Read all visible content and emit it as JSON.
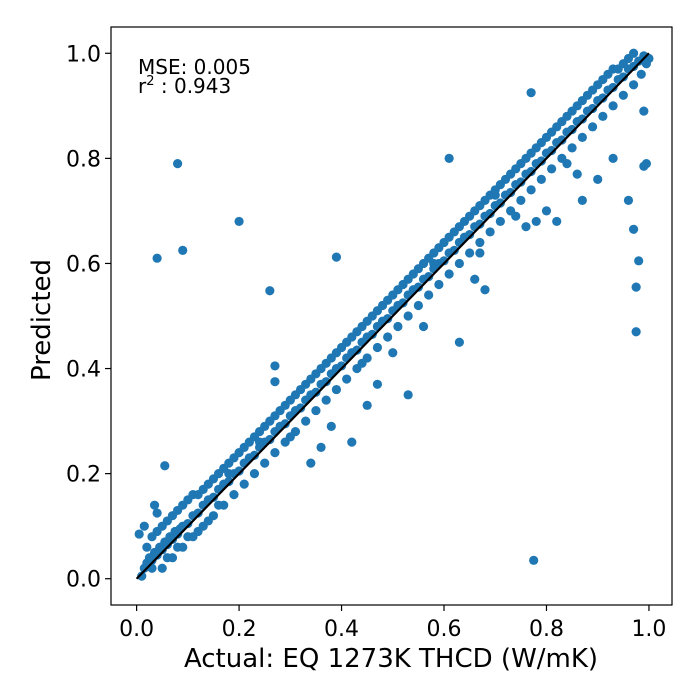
{
  "chart_data": {
    "type": "scatter",
    "xlabel": "Actual: EQ 1273K THCD (W/mK)",
    "ylabel": "Predicted",
    "xlim": [
      -0.05,
      1.045
    ],
    "ylim": [
      -0.05,
      1.05
    ],
    "xticks": [
      "0.0",
      "0.2",
      "0.4",
      "0.6",
      "0.8",
      "1.0"
    ],
    "yticks": [
      "0.0",
      "0.2",
      "0.4",
      "0.6",
      "0.8",
      "1.0"
    ],
    "grid": false,
    "annotations": {
      "mse": "MSE: 0.005",
      "r2_symbol": "r",
      "r2_exponent": "2",
      "r2_value": " : 0.943"
    },
    "point_color": "#1f77b4",
    "line_color": "#000000",
    "reference_line": {
      "x": [
        0.0,
        1.0
      ],
      "y": [
        0.0,
        1.0
      ]
    },
    "series": [
      {
        "points": [
          [
            0.01,
            0.005
          ],
          [
            0.015,
            0.02
          ],
          [
            0.02,
            0.03
          ],
          [
            0.025,
            0.04
          ],
          [
            0.03,
            0.035
          ],
          [
            0.035,
            0.05
          ],
          [
            0.04,
            0.045
          ],
          [
            0.045,
            0.06
          ],
          [
            0.05,
            0.055
          ],
          [
            0.055,
            0.07
          ],
          [
            0.06,
            0.065
          ],
          [
            0.065,
            0.08
          ],
          [
            0.07,
            0.075
          ],
          [
            0.075,
            0.09
          ],
          [
            0.08,
            0.085
          ],
          [
            0.085,
            0.095
          ],
          [
            0.09,
            0.1
          ],
          [
            0.1,
            0.105
          ],
          [
            0.11,
            0.12
          ],
          [
            0.12,
            0.125
          ],
          [
            0.13,
            0.14
          ],
          [
            0.14,
            0.15
          ],
          [
            0.15,
            0.155
          ],
          [
            0.16,
            0.17
          ],
          [
            0.17,
            0.18
          ],
          [
            0.18,
            0.185
          ],
          [
            0.19,
            0.2
          ],
          [
            0.2,
            0.205
          ],
          [
            0.21,
            0.22
          ],
          [
            0.22,
            0.23
          ],
          [
            0.23,
            0.235
          ],
          [
            0.24,
            0.25
          ],
          [
            0.25,
            0.26
          ],
          [
            0.26,
            0.265
          ],
          [
            0.27,
            0.28
          ],
          [
            0.28,
            0.29
          ],
          [
            0.29,
            0.295
          ],
          [
            0.3,
            0.31
          ],
          [
            0.31,
            0.32
          ],
          [
            0.32,
            0.325
          ],
          [
            0.33,
            0.34
          ],
          [
            0.34,
            0.35
          ],
          [
            0.35,
            0.355
          ],
          [
            0.36,
            0.37
          ],
          [
            0.37,
            0.375
          ],
          [
            0.38,
            0.39
          ],
          [
            0.39,
            0.4
          ],
          [
            0.4,
            0.405
          ],
          [
            0.41,
            0.42
          ],
          [
            0.42,
            0.43
          ],
          [
            0.43,
            0.435
          ],
          [
            0.44,
            0.45
          ],
          [
            0.45,
            0.46
          ],
          [
            0.46,
            0.465
          ],
          [
            0.47,
            0.48
          ],
          [
            0.48,
            0.49
          ],
          [
            0.49,
            0.495
          ],
          [
            0.5,
            0.51
          ],
          [
            0.51,
            0.52
          ],
          [
            0.52,
            0.525
          ],
          [
            0.53,
            0.54
          ],
          [
            0.54,
            0.55
          ],
          [
            0.55,
            0.555
          ],
          [
            0.56,
            0.57
          ],
          [
            0.57,
            0.575
          ],
          [
            0.58,
            0.59
          ],
          [
            0.59,
            0.6
          ],
          [
            0.6,
            0.605
          ],
          [
            0.61,
            0.62
          ],
          [
            0.62,
            0.625
          ],
          [
            0.63,
            0.64
          ],
          [
            0.64,
            0.65
          ],
          [
            0.65,
            0.655
          ],
          [
            0.66,
            0.67
          ],
          [
            0.67,
            0.675
          ],
          [
            0.68,
            0.69
          ],
          [
            0.69,
            0.695
          ],
          [
            0.7,
            0.71
          ],
          [
            0.71,
            0.715
          ],
          [
            0.72,
            0.73
          ],
          [
            0.73,
            0.735
          ],
          [
            0.74,
            0.75
          ],
          [
            0.75,
            0.755
          ],
          [
            0.76,
            0.77
          ],
          [
            0.77,
            0.775
          ],
          [
            0.78,
            0.79
          ],
          [
            0.79,
            0.795
          ],
          [
            0.8,
            0.81
          ],
          [
            0.81,
            0.815
          ],
          [
            0.82,
            0.83
          ],
          [
            0.83,
            0.835
          ],
          [
            0.84,
            0.85
          ],
          [
            0.85,
            0.855
          ],
          [
            0.86,
            0.87
          ],
          [
            0.87,
            0.875
          ],
          [
            0.88,
            0.89
          ],
          [
            0.89,
            0.895
          ],
          [
            0.9,
            0.91
          ],
          [
            0.91,
            0.915
          ],
          [
            0.92,
            0.93
          ],
          [
            0.93,
            0.935
          ],
          [
            0.94,
            0.95
          ],
          [
            0.95,
            0.955
          ],
          [
            0.96,
            0.97
          ],
          [
            0.97,
            0.975
          ],
          [
            0.98,
            0.985
          ],
          [
            0.99,
            0.995
          ],
          [
            1.0,
            0.99
          ],
          [
            0.995,
            0.98
          ],
          [
            0.985,
            0.96
          ],
          [
            0.02,
            0.06
          ],
          [
            0.03,
            0.08
          ],
          [
            0.04,
            0.09
          ],
          [
            0.05,
            0.1
          ],
          [
            0.06,
            0.11
          ],
          [
            0.07,
            0.12
          ],
          [
            0.08,
            0.13
          ],
          [
            0.09,
            0.14
          ],
          [
            0.1,
            0.15
          ],
          [
            0.11,
            0.16
          ],
          [
            0.12,
            0.16
          ],
          [
            0.13,
            0.17
          ],
          [
            0.14,
            0.18
          ],
          [
            0.15,
            0.19
          ],
          [
            0.16,
            0.2
          ],
          [
            0.17,
            0.21
          ],
          [
            0.18,
            0.22
          ],
          [
            0.19,
            0.23
          ],
          [
            0.2,
            0.24
          ],
          [
            0.21,
            0.25
          ],
          [
            0.22,
            0.26
          ],
          [
            0.23,
            0.27
          ],
          [
            0.24,
            0.28
          ],
          [
            0.25,
            0.29
          ],
          [
            0.26,
            0.3
          ],
          [
            0.27,
            0.31
          ],
          [
            0.28,
            0.32
          ],
          [
            0.29,
            0.33
          ],
          [
            0.3,
            0.34
          ],
          [
            0.31,
            0.35
          ],
          [
            0.32,
            0.36
          ],
          [
            0.33,
            0.37
          ],
          [
            0.34,
            0.38
          ],
          [
            0.35,
            0.39
          ],
          [
            0.36,
            0.4
          ],
          [
            0.37,
            0.41
          ],
          [
            0.38,
            0.42
          ],
          [
            0.39,
            0.43
          ],
          [
            0.4,
            0.44
          ],
          [
            0.41,
            0.45
          ],
          [
            0.42,
            0.46
          ],
          [
            0.43,
            0.47
          ],
          [
            0.44,
            0.48
          ],
          [
            0.45,
            0.49
          ],
          [
            0.46,
            0.5
          ],
          [
            0.47,
            0.51
          ],
          [
            0.48,
            0.52
          ],
          [
            0.49,
            0.53
          ],
          [
            0.5,
            0.54
          ],
          [
            0.51,
            0.55
          ],
          [
            0.52,
            0.56
          ],
          [
            0.53,
            0.57
          ],
          [
            0.54,
            0.58
          ],
          [
            0.55,
            0.59
          ],
          [
            0.56,
            0.6
          ],
          [
            0.57,
            0.61
          ],
          [
            0.58,
            0.62
          ],
          [
            0.59,
            0.63
          ],
          [
            0.6,
            0.64
          ],
          [
            0.61,
            0.65
          ],
          [
            0.62,
            0.66
          ],
          [
            0.63,
            0.67
          ],
          [
            0.64,
            0.68
          ],
          [
            0.65,
            0.69
          ],
          [
            0.66,
            0.7
          ],
          [
            0.67,
            0.71
          ],
          [
            0.68,
            0.72
          ],
          [
            0.69,
            0.73
          ],
          [
            0.7,
            0.74
          ],
          [
            0.71,
            0.75
          ],
          [
            0.72,
            0.76
          ],
          [
            0.73,
            0.77
          ],
          [
            0.74,
            0.78
          ],
          [
            0.75,
            0.79
          ],
          [
            0.76,
            0.8
          ],
          [
            0.77,
            0.81
          ],
          [
            0.78,
            0.82
          ],
          [
            0.79,
            0.83
          ],
          [
            0.8,
            0.84
          ],
          [
            0.81,
            0.85
          ],
          [
            0.82,
            0.86
          ],
          [
            0.83,
            0.87
          ],
          [
            0.84,
            0.88
          ],
          [
            0.85,
            0.89
          ],
          [
            0.86,
            0.9
          ],
          [
            0.87,
            0.91
          ],
          [
            0.88,
            0.92
          ],
          [
            0.89,
            0.93
          ],
          [
            0.9,
            0.94
          ],
          [
            0.91,
            0.95
          ],
          [
            0.92,
            0.96
          ],
          [
            0.93,
            0.97
          ],
          [
            0.94,
            0.97
          ],
          [
            0.95,
            0.98
          ],
          [
            0.96,
            0.99
          ],
          [
            0.97,
            1.0
          ],
          [
            0.05,
            0.02
          ],
          [
            0.07,
            0.04
          ],
          [
            0.09,
            0.06
          ],
          [
            0.11,
            0.08
          ],
          [
            0.13,
            0.1
          ],
          [
            0.15,
            0.12
          ],
          [
            0.17,
            0.14
          ],
          [
            0.19,
            0.16
          ],
          [
            0.21,
            0.18
          ],
          [
            0.23,
            0.2
          ],
          [
            0.25,
            0.22
          ],
          [
            0.27,
            0.24
          ],
          [
            0.29,
            0.26
          ],
          [
            0.31,
            0.28
          ],
          [
            0.33,
            0.3
          ],
          [
            0.35,
            0.32
          ],
          [
            0.37,
            0.34
          ],
          [
            0.39,
            0.36
          ],
          [
            0.41,
            0.38
          ],
          [
            0.43,
            0.4
          ],
          [
            0.45,
            0.42
          ],
          [
            0.47,
            0.44
          ],
          [
            0.49,
            0.46
          ],
          [
            0.51,
            0.48
          ],
          [
            0.53,
            0.5
          ],
          [
            0.55,
            0.52
          ],
          [
            0.57,
            0.54
          ],
          [
            0.59,
            0.56
          ],
          [
            0.61,
            0.58
          ],
          [
            0.63,
            0.6
          ],
          [
            0.65,
            0.62
          ],
          [
            0.67,
            0.64
          ],
          [
            0.69,
            0.66
          ],
          [
            0.71,
            0.68
          ],
          [
            0.73,
            0.7
          ],
          [
            0.75,
            0.72
          ],
          [
            0.77,
            0.74
          ],
          [
            0.79,
            0.76
          ],
          [
            0.81,
            0.78
          ],
          [
            0.83,
            0.8
          ],
          [
            0.85,
            0.82
          ],
          [
            0.87,
            0.84
          ],
          [
            0.89,
            0.86
          ],
          [
            0.91,
            0.88
          ],
          [
            0.93,
            0.9
          ],
          [
            0.95,
            0.92
          ],
          [
            0.97,
            0.94
          ],
          [
            0.005,
            0.085
          ],
          [
            0.015,
            0.1
          ],
          [
            0.035,
            0.14
          ],
          [
            0.04,
            0.125
          ],
          [
            0.055,
            0.215
          ],
          [
            0.08,
            0.79
          ],
          [
            0.04,
            0.61
          ],
          [
            0.09,
            0.625
          ],
          [
            0.2,
            0.68
          ],
          [
            0.26,
            0.548
          ],
          [
            0.39,
            0.612
          ],
          [
            0.27,
            0.405
          ],
          [
            0.27,
            0.375
          ],
          [
            0.34,
            0.22
          ],
          [
            0.36,
            0.25
          ],
          [
            0.38,
            0.29
          ],
          [
            0.42,
            0.26
          ],
          [
            0.45,
            0.33
          ],
          [
            0.53,
            0.35
          ],
          [
            0.47,
            0.37
          ],
          [
            0.61,
            0.8
          ],
          [
            0.63,
            0.45
          ],
          [
            0.68,
            0.55
          ],
          [
            0.67,
            0.62
          ],
          [
            0.74,
            0.69
          ],
          [
            0.76,
            0.67
          ],
          [
            0.78,
            0.68
          ],
          [
            0.8,
            0.7
          ],
          [
            0.82,
            0.68
          ],
          [
            0.77,
            0.925
          ],
          [
            0.87,
            0.72
          ],
          [
            0.9,
            0.76
          ],
          [
            0.93,
            0.8
          ],
          [
            0.96,
            0.72
          ],
          [
            0.97,
            0.665
          ],
          [
            0.98,
            0.605
          ],
          [
            0.975,
            0.555
          ],
          [
            0.975,
            0.47
          ],
          [
            0.99,
            0.89
          ],
          [
            0.99,
            0.785
          ],
          [
            0.995,
            0.79
          ],
          [
            0.775,
            0.035
          ],
          [
            0.86,
            0.77
          ],
          [
            0.84,
            0.79
          ],
          [
            0.7,
            0.73
          ],
          [
            0.66,
            0.57
          ],
          [
            0.58,
            0.6
          ],
          [
            0.56,
            0.48
          ],
          [
            0.5,
            0.43
          ],
          [
            0.44,
            0.41
          ],
          [
            0.3,
            0.27
          ],
          [
            0.24,
            0.26
          ],
          [
            0.18,
            0.2
          ],
          [
            0.16,
            0.14
          ],
          [
            0.14,
            0.11
          ],
          [
            0.12,
            0.09
          ],
          [
            0.1,
            0.08
          ],
          [
            0.08,
            0.06
          ],
          [
            0.06,
            0.04
          ],
          [
            0.03,
            0.02
          ]
        ]
      }
    ]
  }
}
